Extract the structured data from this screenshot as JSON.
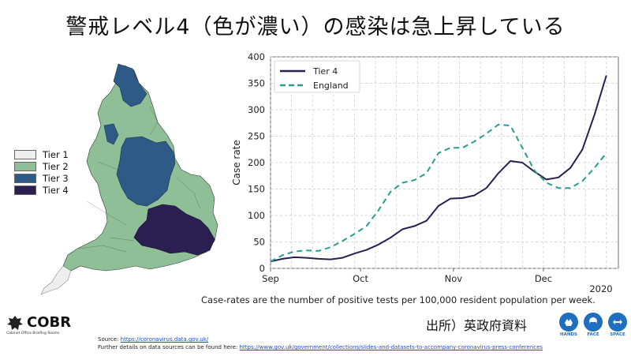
{
  "title": "警戒レベル4（色が濃い）の感染は急上昇している",
  "map_legend": [
    {
      "label": "Tier 1",
      "color": "#eeeeee"
    },
    {
      "label": "Tier 2",
      "color": "#8fbf96"
    },
    {
      "label": "Tier 3",
      "color": "#2e5a87"
    },
    {
      "label": "Tier 4",
      "color": "#2b1f52"
    }
  ],
  "chart_data": {
    "type": "line",
    "ylabel": "Case rate",
    "xlabel": "",
    "ylim": [
      0,
      400
    ],
    "yticks": [
      0,
      50,
      100,
      150,
      200,
      250,
      300,
      350,
      400
    ],
    "xlim": [
      "2020-09-01",
      "2020-12-26"
    ],
    "xticks": [
      {
        "date": "2020-09-01",
        "label": "Sep"
      },
      {
        "date": "2020-10-01",
        "label": "Oct"
      },
      {
        "date": "2020-11-01",
        "label": "Nov"
      },
      {
        "date": "2020-12-01",
        "label": "Dec"
      }
    ],
    "year_label": "2020",
    "grid": true,
    "legend_position": "top-left",
    "series": [
      {
        "name": "Tier 4",
        "color": "#2b1f52",
        "style": "solid",
        "points": [
          [
            "2020-09-01",
            13
          ],
          [
            "2020-09-05",
            18
          ],
          [
            "2020-09-09",
            21
          ],
          [
            "2020-09-13",
            20
          ],
          [
            "2020-09-17",
            18
          ],
          [
            "2020-09-21",
            17
          ],
          [
            "2020-09-25",
            20
          ],
          [
            "2020-09-29",
            28
          ],
          [
            "2020-10-03",
            35
          ],
          [
            "2020-10-07",
            45
          ],
          [
            "2020-10-11",
            58
          ],
          [
            "2020-10-15",
            74
          ],
          [
            "2020-10-19",
            80
          ],
          [
            "2020-10-23",
            90
          ],
          [
            "2020-10-27",
            118
          ],
          [
            "2020-10-31",
            132
          ],
          [
            "2020-11-04",
            133
          ],
          [
            "2020-11-08",
            138
          ],
          [
            "2020-11-12",
            152
          ],
          [
            "2020-11-16",
            180
          ],
          [
            "2020-11-20",
            203
          ],
          [
            "2020-11-24",
            200
          ],
          [
            "2020-11-28",
            183
          ],
          [
            "2020-12-02",
            168
          ],
          [
            "2020-12-06",
            172
          ],
          [
            "2020-12-10",
            190
          ],
          [
            "2020-12-14",
            225
          ],
          [
            "2020-12-18",
            290
          ],
          [
            "2020-12-22",
            365
          ]
        ]
      },
      {
        "name": "England",
        "color": "#2a9d8f",
        "style": "dashed",
        "points": [
          [
            "2020-09-01",
            13
          ],
          [
            "2020-09-05",
            25
          ],
          [
            "2020-09-09",
            32
          ],
          [
            "2020-09-13",
            34
          ],
          [
            "2020-09-17",
            33
          ],
          [
            "2020-09-21",
            40
          ],
          [
            "2020-09-25",
            52
          ],
          [
            "2020-09-29",
            65
          ],
          [
            "2020-10-03",
            80
          ],
          [
            "2020-10-07",
            110
          ],
          [
            "2020-10-11",
            145
          ],
          [
            "2020-10-15",
            162
          ],
          [
            "2020-10-19",
            167
          ],
          [
            "2020-10-23",
            180
          ],
          [
            "2020-10-27",
            218
          ],
          [
            "2020-10-31",
            228
          ],
          [
            "2020-11-04",
            228
          ],
          [
            "2020-11-08",
            240
          ],
          [
            "2020-11-12",
            255
          ],
          [
            "2020-11-16",
            272
          ],
          [
            "2020-11-20",
            270
          ],
          [
            "2020-11-24",
            228
          ],
          [
            "2020-11-28",
            185
          ],
          [
            "2020-12-02",
            162
          ],
          [
            "2020-12-06",
            152
          ],
          [
            "2020-12-10",
            152
          ],
          [
            "2020-12-14",
            165
          ],
          [
            "2020-12-18",
            190
          ],
          [
            "2020-12-22",
            218
          ]
        ]
      }
    ]
  },
  "caption": "Case-rates are the number of positive tests per 100,000 resident population per week.",
  "cobr": {
    "name": "COBR",
    "subtitle": "Cabinet Office Briefing Rooms"
  },
  "source": {
    "prefix": "Source: ",
    "url": "https://coronavirus.data.gov.uk/",
    "details_prefix": "Further details on data sources can be found here: ",
    "details_url": "https://www.gov.uk/government/collections/slides-and-datasets-to-accompany-coronavirus-press-conferences"
  },
  "dept_label": "出所）英政府資料",
  "badges": [
    {
      "label": "HANDS",
      "icon": "hands-icon"
    },
    {
      "label": "FACE",
      "icon": "face-icon"
    },
    {
      "label": "SPACE",
      "icon": "space-icon"
    }
  ]
}
